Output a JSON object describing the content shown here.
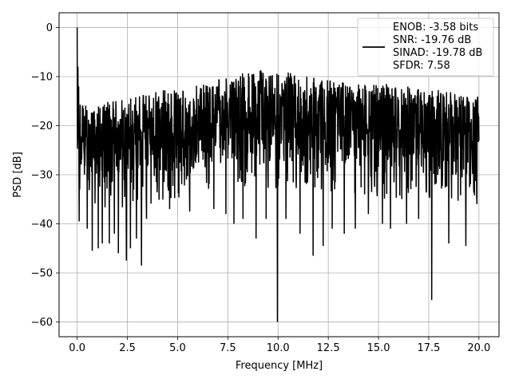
{
  "chart_data": {
    "type": "line",
    "title": "",
    "xlabel": "Frequency [MHz]",
    "ylabel": "PSD [dB]",
    "xlim": [
      -0.9,
      21.0
    ],
    "ylim": [
      -63,
      3
    ],
    "grid": true,
    "legend_placement": "top-right",
    "x_ticks": [
      0.0,
      2.5,
      5.0,
      7.5,
      10.0,
      12.5,
      15.0,
      17.5,
      20.0
    ],
    "x_tick_labels": [
      "0.0",
      "2.5",
      "5.0",
      "7.5",
      "10.0",
      "12.5",
      "15.0",
      "17.5",
      "20.0"
    ],
    "y_ticks": [
      0,
      -10,
      -20,
      -30,
      -40,
      -50,
      -60
    ],
    "y_tick_labels": [
      "0",
      "−10",
      "−20",
      "−30",
      "−40",
      "−50",
      "−60"
    ],
    "series_color": "#000000",
    "legend": {
      "lines": [
        "ENOB: -3.58 bits",
        "SNR: -19.76 dB",
        "SINAD: -19.78 dB",
        "SFDR: 7.58"
      ]
    },
    "x_range": [
      0,
      20
    ],
    "series": [
      {
        "envelope_x": [
          0,
          0.5,
          1,
          1.5,
          2,
          2.5,
          3,
          3.5,
          4,
          4.5,
          5,
          5.5,
          6,
          6.5,
          7,
          7.5,
          8,
          8.5,
          9,
          9.5,
          10,
          10.5,
          11,
          11.5,
          12,
          12.5,
          13,
          13.5,
          14,
          14.5,
          15,
          15.5,
          16,
          16.5,
          17,
          17.5,
          18,
          18.5,
          19,
          19.5,
          20
        ],
        "envelope_upper": [
          -15,
          -16,
          -15.5,
          -15,
          -15,
          -14.5,
          -14,
          -13.5,
          -13,
          -12.5,
          -12.5,
          -12,
          -11.5,
          -11,
          -10.5,
          -10,
          -9.5,
          -9,
          -8.5,
          -9,
          -9.5,
          -9,
          -9,
          -10,
          -10,
          -10.5,
          -11,
          -11,
          -11,
          -11,
          -11.5,
          -11.5,
          -12,
          -12,
          -12,
          -12.5,
          -12.5,
          -13,
          -13,
          -13.5,
          -14
        ],
        "envelope_lower": [
          -30,
          -32,
          -32,
          -32,
          -32,
          -32,
          -31,
          -31,
          -31,
          -30,
          -30,
          -30,
          -29,
          -29,
          -29,
          -28,
          -28,
          -28,
          -28,
          -28,
          -28,
          -28,
          -28,
          -28,
          -28,
          -29,
          -29,
          -29,
          -29,
          -29,
          -30,
          -30,
          -30,
          -30,
          -30,
          -30,
          -31,
          -31,
          -31,
          -31,
          -31
        ],
        "peaks": [
          [
            0.0,
            0.0
          ],
          [
            0.04,
            -8.0
          ],
          [
            0.07,
            -12.0
          ]
        ],
        "dips": [
          [
            0.1,
            -39.5
          ],
          [
            0.5,
            -41
          ],
          [
            0.75,
            -45.5
          ],
          [
            1.05,
            -45
          ],
          [
            1.25,
            -44
          ],
          [
            1.6,
            -44
          ],
          [
            1.85,
            -42
          ],
          [
            2.05,
            -46
          ],
          [
            2.45,
            -47.5
          ],
          [
            2.65,
            -45
          ],
          [
            2.95,
            -43
          ],
          [
            3.2,
            -48.5
          ],
          [
            3.45,
            -39
          ],
          [
            4.6,
            -37
          ],
          [
            5.6,
            -37.5
          ],
          [
            6.8,
            -37
          ],
          [
            7.4,
            -38
          ],
          [
            7.8,
            -40
          ],
          [
            8.25,
            -39
          ],
          [
            8.9,
            -43
          ],
          [
            9.4,
            -39
          ],
          [
            9.97,
            -60
          ],
          [
            10.4,
            -39
          ],
          [
            11.1,
            -42
          ],
          [
            11.75,
            -46.5
          ],
          [
            12.25,
            -44.5
          ],
          [
            12.7,
            -41
          ],
          [
            13.3,
            -42
          ],
          [
            13.85,
            -41
          ],
          [
            14.5,
            -38
          ],
          [
            15.2,
            -40
          ],
          [
            15.6,
            -41
          ],
          [
            16.4,
            -40
          ],
          [
            17.0,
            -39
          ],
          [
            17.65,
            -55.5
          ],
          [
            18.5,
            -44
          ],
          [
            19.35,
            -44.5
          ],
          [
            19.9,
            -36
          ]
        ],
        "n_points": 1600,
        "seed": 1337
      }
    ]
  }
}
